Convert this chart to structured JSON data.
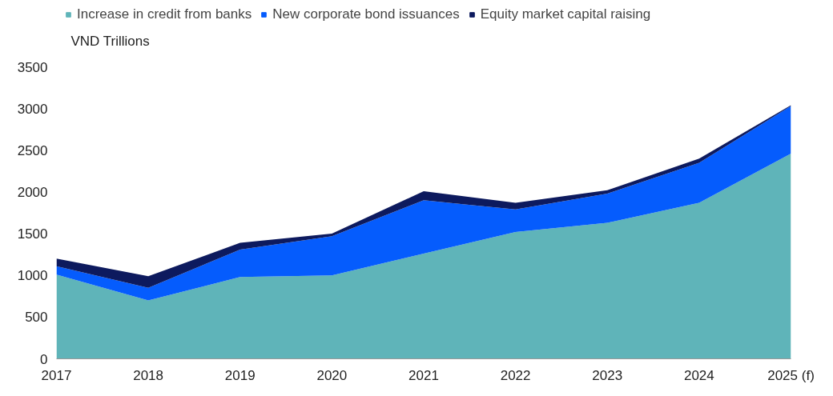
{
  "chart_data": {
    "type": "area",
    "stacked": true,
    "ylabel": "VND Trillions",
    "categories": [
      "2017",
      "2018",
      "2019",
      "2020",
      "2021",
      "2022",
      "2023",
      "2024",
      "2025 (f)"
    ],
    "series": [
      {
        "name": "Increase in credit from banks",
        "color": "#5fb4b9",
        "values": [
          1010,
          700,
          980,
          1000,
          1260,
          1520,
          1630,
          1870,
          2460
        ]
      },
      {
        "name": "New corporate bond issuances",
        "color": "#055cfd",
        "values": [
          100,
          150,
          330,
          470,
          640,
          270,
          350,
          480,
          570
        ]
      },
      {
        "name": "Equity market capital raising",
        "color": "#0d1a5e",
        "values": [
          90,
          140,
          80,
          30,
          110,
          80,
          40,
          50,
          10
        ]
      }
    ],
    "ylim": [
      0,
      3500
    ],
    "yticks": [
      0,
      500,
      1000,
      1500,
      2000,
      2500,
      3000,
      3500
    ],
    "grid": false,
    "legend": "top"
  }
}
